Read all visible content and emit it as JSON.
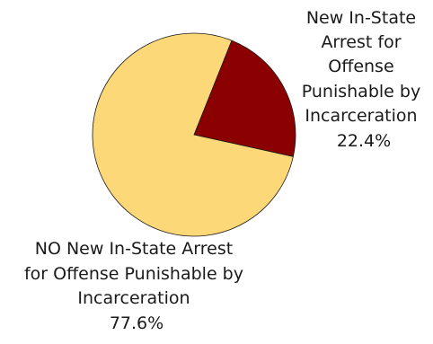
{
  "chart_data": {
    "type": "pie",
    "title": "",
    "slices": [
      {
        "label_lines": [
          "New In-State",
          "Arrest for",
          "Offense",
          "Punishable by",
          "Incarceration"
        ],
        "value": 22.4,
        "value_label": "22.4%",
        "color": "#8b0000"
      },
      {
        "label_lines": [
          "NO New In-State Arrest",
          "for Offense Punishable by",
          "Incarceration"
        ],
        "value": 77.6,
        "value_label": "77.6%",
        "color": "#fdd878"
      }
    ],
    "start_angle_deg": 21.8,
    "direction": "clockwise",
    "slice_outline_color": "#1a1a1a",
    "legend": "none"
  }
}
